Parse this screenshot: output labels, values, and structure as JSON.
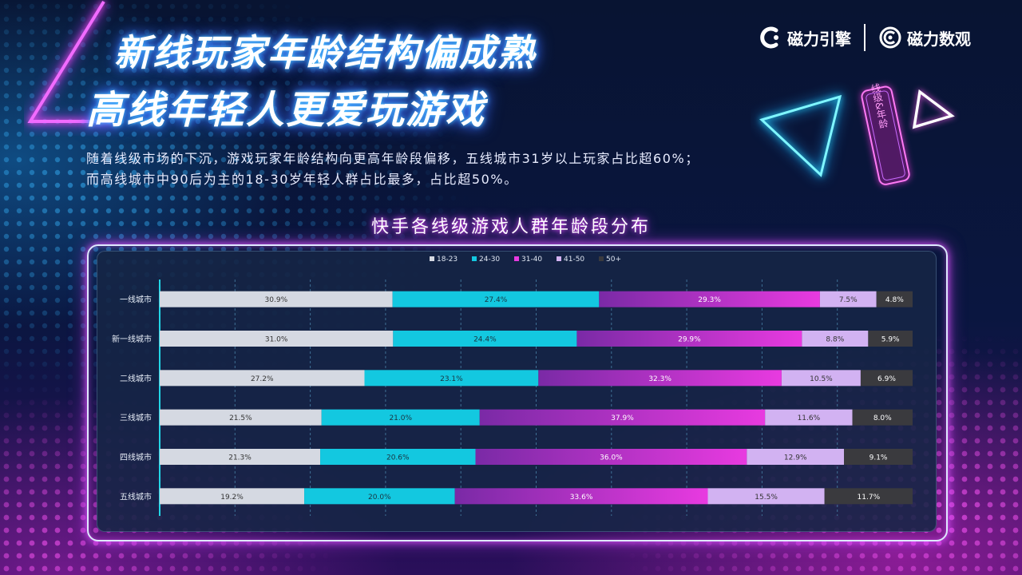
{
  "header": {
    "title_line1": "新线玩家年龄结构偏成熟",
    "title_line2": "高线年轻人更爱玩游戏",
    "subtitle_line1": "随着线级市场的下沉，游戏玩家年龄结构向更高年龄段偏移，五线城市31岁以上玩家占比超60%；",
    "subtitle_line2": "而高线城市中90后为主的18-30岁年轻人群占比最多，占比超50%。"
  },
  "logos": {
    "brand1": "磁力引擎",
    "brand2": "磁力数观",
    "brand1_icon": "cili-engine-icon",
    "brand2_icon": "cili-shuguan-icon"
  },
  "decoration": {
    "tag_text": "线级&年龄"
  },
  "chart_title": "快手各线级游戏人群年龄段分布",
  "chart_data": {
    "type": "bar",
    "orientation": "horizontal",
    "stacked": true,
    "normalized": true,
    "categories": [
      "一线城市",
      "新一线城市",
      "二线城市",
      "三线城市",
      "四线城市",
      "五线城市"
    ],
    "series": [
      {
        "name": "18-23",
        "values": [
          30.9,
          31.0,
          27.2,
          21.5,
          21.3,
          19.2
        ],
        "labels": [
          "30.9%",
          "31.0%",
          "27.2%",
          "21.5%",
          "21.3%",
          "19.2%"
        ]
      },
      {
        "name": "24-30",
        "values": [
          27.4,
          24.4,
          23.1,
          21.0,
          20.6,
          20.0
        ],
        "labels": [
          "27.4%",
          "24.4%",
          "23.1%",
          "21.0%",
          "20.6%",
          "20.0%"
        ]
      },
      {
        "name": "31-40",
        "values": [
          29.3,
          29.9,
          32.3,
          37.9,
          36.0,
          33.6
        ],
        "labels": [
          "29.3%",
          "29.9%",
          "32.3%",
          "37.9%",
          "36.0%",
          "33.6%"
        ]
      },
      {
        "name": "41-50",
        "values": [
          7.5,
          8.8,
          10.5,
          11.6,
          12.9,
          15.5
        ],
        "labels": [
          "7.5%",
          "8.8%",
          "10.5%",
          "11.6%",
          "12.9%",
          "15.5%"
        ]
      },
      {
        "name": "50+",
        "values": [
          4.8,
          5.9,
          6.9,
          8.0,
          9.1,
          11.7
        ],
        "labels": [
          "4.8%",
          "5.9%",
          "6.9%",
          "8.0%",
          "9.1%",
          "11.7%"
        ]
      }
    ],
    "colors": [
      "#d5d9e2",
      "#13c8e0",
      "#e83ae0",
      "#d2b2f2",
      "#3a3a3e"
    ],
    "gradient_series": "31-40",
    "gradient_from": "#7a2aa6",
    "label_colors": [
      "#333333",
      "#1a3340",
      "#ffffff",
      "#333333",
      "#ffffff"
    ],
    "legend_position": "top-center",
    "grid": "dashed-vertical",
    "xlim": [
      0,
      100
    ]
  }
}
